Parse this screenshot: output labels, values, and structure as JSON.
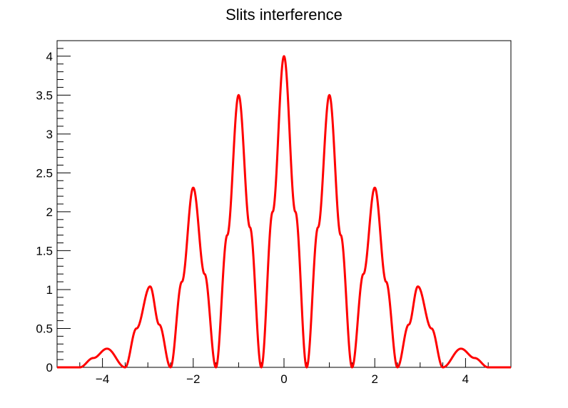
{
  "chart_data": {
    "type": "line",
    "title": "Slits interference",
    "xlabel": "",
    "ylabel": "",
    "xlim": [
      -5,
      5
    ],
    "ylim": [
      0,
      4.2
    ],
    "grid": false,
    "legend": "none",
    "line_color": "#ff0000",
    "x_ticks": [
      -4,
      -2,
      0,
      2,
      4
    ],
    "x_tick_labels": [
      "−4",
      "−2",
      "0",
      "2",
      "4"
    ],
    "y_ticks": [
      0,
      0.5,
      1,
      1.5,
      2,
      2.5,
      3,
      3.5,
      4
    ],
    "y_tick_labels": [
      "0",
      "0.5",
      "1",
      "1.5",
      "2",
      "2.5",
      "3",
      "3.5",
      "4"
    ],
    "series": [
      {
        "x": [
          -5,
          -4.5,
          -4.2,
          -3.9,
          -3.5,
          -3.25,
          -2.95,
          -2.75,
          -2.5,
          -2.25,
          -2.0,
          -1.75,
          -1.5,
          -1.25,
          -1.0,
          -0.75,
          -0.5,
          -0.25,
          0,
          0.25,
          0.5,
          0.75,
          1.0,
          1.25,
          1.5,
          1.75,
          2.0,
          2.25,
          2.5,
          2.75,
          2.95,
          3.25,
          3.5,
          3.9,
          4.2,
          4.5,
          5
        ],
        "y": [
          0,
          0,
          0.12,
          0.24,
          0,
          0.5,
          1.04,
          0.55,
          0,
          1.1,
          2.31,
          1.2,
          0,
          1.7,
          3.5,
          1.8,
          0,
          2.0,
          4.0,
          2.0,
          0,
          1.8,
          3.5,
          1.7,
          0,
          1.2,
          2.31,
          1.1,
          0,
          0.55,
          1.04,
          0.5,
          0,
          0.24,
          0.12,
          0,
          0
        ]
      }
    ]
  }
}
